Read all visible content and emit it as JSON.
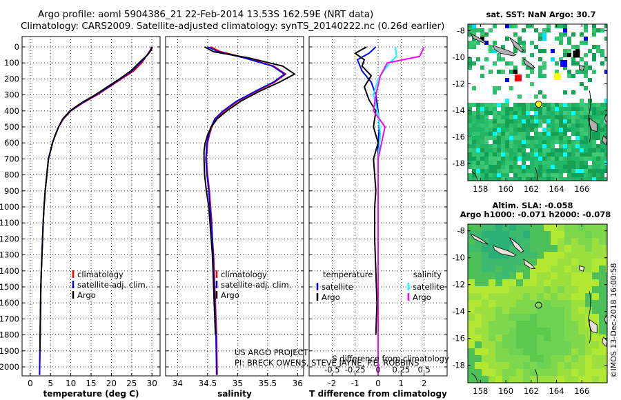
{
  "titles": {
    "line1": "Argo profile: aoml 5904386_21 22-Feb-2014 13.53S 162.59E (NRT data)",
    "line2": "Climatology: CARS2009. Satellite-adjusted climatology: synTS_20140222.nc (0.26d earlier)"
  },
  "credits": {
    "project": "US ARGO PROJECT",
    "pis": "PI: BRECK OWENS, STEVE JAYNE, P.E. ROBBINS",
    "stamp": "©IMOS 13-Dec-2018 16:00:58"
  },
  "colors": {
    "climatology": "#ff0000",
    "satellite": "#0000ff",
    "argo": "#000000",
    "satellite_salinity": "#00ffff",
    "argo_salinity": "#ff00ff",
    "ocean_green": "#22b86a",
    "land": "#b0b0b0"
  },
  "chart_data": [
    {
      "type": "line",
      "id": "temperature",
      "xlabel": "temperature (deg C)",
      "xlim": [
        -2,
        32
      ],
      "ylim": [
        2100,
        0
      ],
      "xticks": [
        0,
        5,
        10,
        15,
        20,
        25,
        30
      ],
      "yticks": [
        0,
        100,
        200,
        300,
        400,
        500,
        600,
        700,
        800,
        900,
        1000,
        1100,
        1200,
        1300,
        1400,
        1500,
        1600,
        1700,
        1800,
        1900,
        2000
      ],
      "legend": [
        "climatology",
        "satellite-adj. clim.",
        "Argo"
      ],
      "series": [
        {
          "name": "climatology",
          "color_key": "climatology",
          "x": [
            29.8,
            29.6,
            28.8,
            27.5,
            25.5,
            22.5,
            19.5,
            16.5,
            13.0,
            10.0,
            8.2,
            7.0,
            6.2,
            5.5,
            5.0,
            4.5,
            4.1,
            3.7,
            3.4,
            3.2,
            3.05,
            2.9,
            2.75,
            2.62,
            2.5,
            2.4,
            2.3
          ],
          "y": [
            0,
            20,
            50,
            100,
            150,
            200,
            250,
            300,
            350,
            400,
            450,
            500,
            550,
            600,
            650,
            700,
            800,
            900,
            1000,
            1100,
            1200,
            1300,
            1400,
            1500,
            1700,
            1900,
            2050
          ]
        },
        {
          "name": "satellite-adj. clim.",
          "color_key": "satellite",
          "x": [
            30.0,
            29.7,
            28.9,
            27.1,
            25.1,
            22.2,
            19.3,
            16.2,
            12.8,
            9.9,
            8.1,
            7.0,
            6.2,
            5.5,
            5.0,
            4.5,
            4.1,
            3.7,
            3.4,
            3.2,
            3.05,
            2.9,
            2.75,
            2.62,
            2.5,
            2.4,
            2.3
          ],
          "y": [
            0,
            20,
            50,
            100,
            150,
            200,
            250,
            300,
            350,
            400,
            450,
            500,
            550,
            600,
            650,
            700,
            800,
            900,
            1000,
            1100,
            1200,
            1300,
            1400,
            1500,
            1700,
            1900,
            2050
          ]
        },
        {
          "name": "Argo",
          "color_key": "argo",
          "x": [
            30.1,
            29.8,
            28.9,
            26.8,
            24.8,
            22.0,
            19.0,
            16.0,
            12.6,
            9.8,
            8.0,
            7.0,
            6.2,
            5.5,
            5.0,
            4.5,
            4.1,
            3.7,
            3.4,
            3.2,
            3.05,
            2.9,
            2.75,
            2.62,
            2.5,
            2.4
          ],
          "y": [
            0,
            20,
            50,
            100,
            150,
            200,
            250,
            300,
            350,
            400,
            450,
            500,
            550,
            600,
            650,
            700,
            800,
            900,
            1000,
            1100,
            1200,
            1300,
            1400,
            1500,
            1700,
            1900
          ]
        }
      ]
    },
    {
      "type": "line",
      "id": "salinity",
      "xlabel": "salinity",
      "xlim": [
        33.8,
        36.1
      ],
      "ylim": [
        2100,
        0
      ],
      "xticks": [
        34,
        34.5,
        35,
        35.5,
        36
      ],
      "legend": [
        "climatology",
        "satellite-adj. clim.",
        "Argo"
      ],
      "series": [
        {
          "name": "climatology",
          "color_key": "climatology",
          "x": [
            34.55,
            34.72,
            35.15,
            35.6,
            35.8,
            35.62,
            35.3,
            35.0,
            34.78,
            34.64,
            34.57,
            34.53,
            34.5,
            34.49,
            34.48,
            34.5,
            34.53,
            34.55,
            34.57,
            34.58,
            34.6,
            34.61,
            34.62,
            34.63,
            34.65,
            34.66
          ],
          "y": [
            0,
            30,
            70,
            120,
            170,
            220,
            280,
            340,
            400,
            450,
            500,
            550,
            600,
            650,
            700,
            800,
            900,
            1000,
            1100,
            1200,
            1300,
            1400,
            1500,
            1600,
            1800,
            2050
          ]
        },
        {
          "name": "satellite-adj. clim.",
          "color_key": "satellite",
          "x": [
            34.5,
            34.68,
            35.12,
            35.58,
            35.78,
            35.6,
            35.28,
            34.98,
            34.76,
            34.62,
            34.56,
            34.52,
            34.49,
            34.48,
            34.47,
            34.49,
            34.52,
            34.54,
            34.56,
            34.58,
            34.59,
            34.6,
            34.61,
            34.62,
            34.64,
            34.65
          ],
          "y": [
            0,
            30,
            70,
            120,
            170,
            220,
            280,
            340,
            400,
            450,
            500,
            550,
            600,
            650,
            700,
            800,
            900,
            1000,
            1100,
            1200,
            1300,
            1400,
            1500,
            1600,
            1800,
            2050
          ]
        },
        {
          "name": "Argo",
          "color_key": "argo",
          "x": [
            34.45,
            34.6,
            35.2,
            35.75,
            35.95,
            35.7,
            35.35,
            35.05,
            34.82,
            34.66,
            34.56,
            34.5,
            34.46,
            34.44,
            34.44,
            34.45,
            34.48,
            34.52,
            34.54,
            34.56,
            34.58,
            34.59,
            34.6,
            34.61,
            34.63
          ],
          "y": [
            0,
            30,
            70,
            120,
            170,
            220,
            280,
            340,
            400,
            450,
            500,
            550,
            600,
            650,
            700,
            800,
            900,
            1000,
            1100,
            1200,
            1300,
            1400,
            1500,
            1600,
            1800
          ]
        }
      ]
    },
    {
      "type": "line",
      "id": "difference",
      "xlabel": "T difference from climatology",
      "xlabel_top": "S difference from climatology",
      "xlim": [
        -3,
        3
      ],
      "ylim": [
        2100,
        0
      ],
      "xticks": [
        -2,
        -1,
        0,
        1,
        2
      ],
      "xticks_top": [
        "-0.5",
        "-0.25",
        "0",
        "0.25",
        "0.5"
      ],
      "legend_left_title": "temperature",
      "legend_right_title": "salinity",
      "legend_left": [
        "satellite",
        "Argo"
      ],
      "legend_right": [
        "satellite",
        "Argo"
      ],
      "series": [
        {
          "name": "satellite",
          "group": "temperature",
          "color_key": "satellite",
          "x": [
            -0.1,
            -0.4,
            -0.9,
            -0.7,
            -0.3,
            -0.1,
            0.0,
            0.05,
            0.0,
            0.0,
            0.0,
            0.0,
            0.0,
            0.0,
            0.0
          ],
          "y": [
            0,
            40,
            80,
            150,
            220,
            300,
            400,
            500,
            600,
            800,
            1000,
            1200,
            1500,
            1800,
            2050
          ]
        },
        {
          "name": "Argo",
          "group": "temperature",
          "color_key": "argo",
          "x": [
            -0.5,
            -1.0,
            -0.6,
            -0.7,
            -0.3,
            -0.6,
            -0.4,
            -0.1,
            -0.2,
            0.0,
            -0.2,
            -0.1,
            -0.15,
            -0.15,
            -0.1,
            -0.05,
            -0.1
          ],
          "y": [
            0,
            40,
            80,
            120,
            180,
            250,
            330,
            400,
            500,
            600,
            700,
            900,
            1000,
            1200,
            1400,
            1600,
            1800
          ]
        },
        {
          "name": "satellite",
          "group": "salinity",
          "color_key": "satellite_salinity",
          "x": [
            0.75,
            0.8,
            0.5,
            0.0,
            -0.2,
            0.0,
            0.1,
            0.0,
            0.0,
            0.0,
            0.0
          ],
          "y": [
            0,
            60,
            100,
            200,
            300,
            420,
            550,
            700,
            1000,
            1500,
            2050
          ]
        },
        {
          "name": "Argo",
          "group": "salinity",
          "color_key": "argo_salinity",
          "x": [
            2.0,
            1.8,
            0.4,
            0.1,
            -0.1,
            -0.2,
            0.3,
            0.0,
            0.0,
            0.0,
            0.0,
            0.0,
            0.0
          ],
          "y": [
            0,
            60,
            100,
            180,
            300,
            400,
            500,
            700,
            800,
            1000,
            1400,
            1800,
            2050
          ]
        }
      ]
    }
  ],
  "maps": [
    {
      "id": "sst-map",
      "title": "sat. SST: NaN Argo: 30.7",
      "lon_ticks": [
        158,
        160,
        162,
        164,
        166
      ],
      "lat_ticks": [
        -8,
        -10,
        -12,
        -14,
        -16,
        -18
      ],
      "lonlim": [
        157,
        168
      ],
      "latlim": [
        -19.3,
        -7.5
      ],
      "profile_marker": {
        "lon": 162.59,
        "lat": -13.53,
        "color": "#ffff00"
      }
    },
    {
      "id": "sla-map",
      "title_line1": "Altim. SLA: -0.058",
      "title_line2": "Argo h1000: -0.071 h2000: -0.078",
      "lon_ticks": [
        158,
        160,
        162,
        164,
        166
      ],
      "lat_ticks": [
        -8,
        -10,
        -12,
        -14,
        -16,
        -18
      ],
      "lonlim": [
        157,
        168
      ],
      "latlim": [
        -19.3,
        -7.5
      ],
      "profile_marker": {
        "lon": 162.59,
        "lat": -13.53,
        "color": "none"
      }
    }
  ]
}
